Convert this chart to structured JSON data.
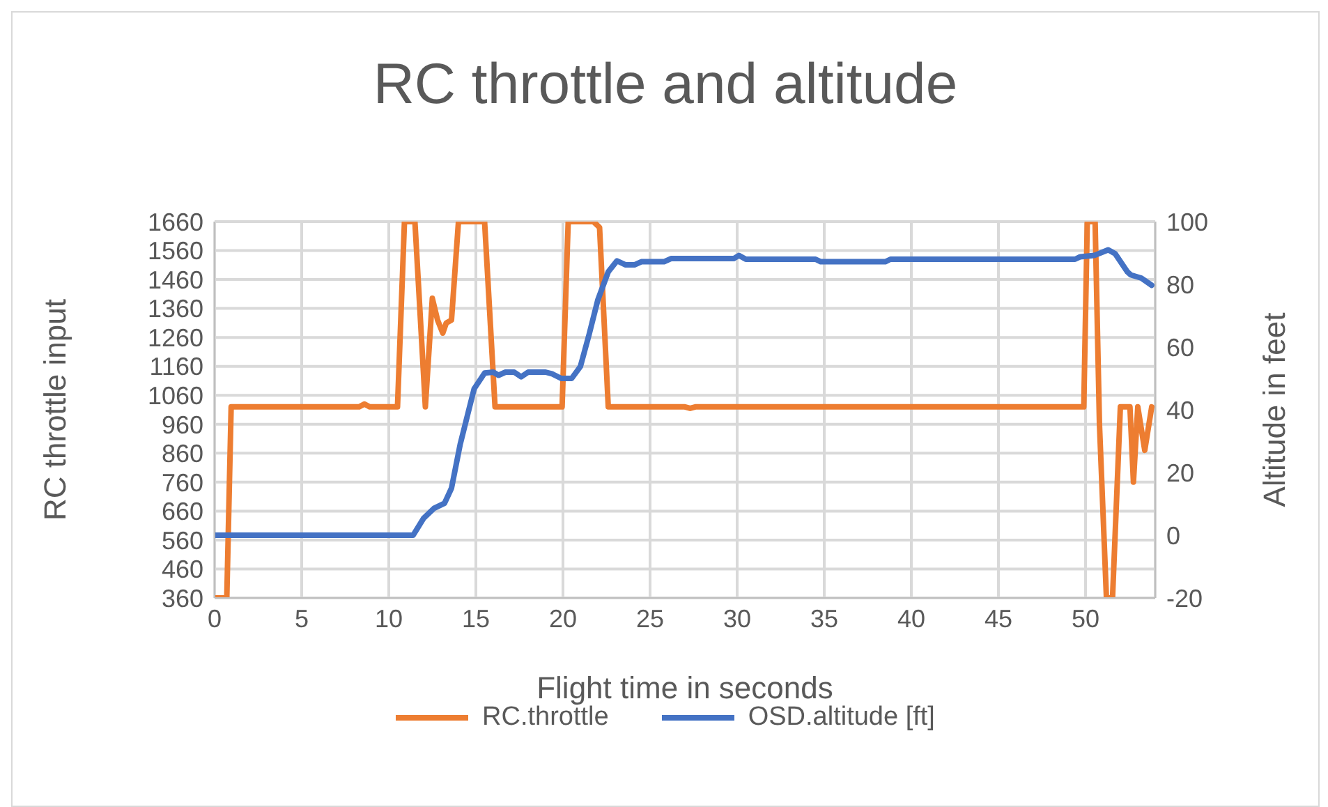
{
  "chart_data": {
    "type": "line",
    "title": "RC throttle and altitude",
    "xlabel": "Flight time in seconds",
    "ylabel": "RC throttle input",
    "y2label": "Altitude in feet",
    "xlim": [
      0,
      54
    ],
    "xticks": [
      0,
      5,
      10,
      15,
      20,
      25,
      30,
      35,
      40,
      45,
      50
    ],
    "ylim": [
      360,
      1660
    ],
    "yticks": [
      360,
      460,
      560,
      660,
      760,
      860,
      960,
      1060,
      1160,
      1260,
      1360,
      1460,
      1560,
      1660
    ],
    "y2lim": [
      -20,
      100
    ],
    "y2ticks": [
      -20,
      0,
      20,
      40,
      60,
      80,
      100
    ],
    "grid": true,
    "legend": "bottom",
    "marker": "none",
    "line_style": "solid",
    "series": [
      {
        "name": "RC.throttle",
        "color": "#ed7d31",
        "x": [
          0,
          0.7,
          0.95,
          8.3,
          8.6,
          8.9,
          10.5,
          10.9,
          11.5,
          12.1,
          12.5,
          12.8,
          13.1,
          13.3,
          13.6,
          14.0,
          15.5,
          16.1,
          19.95,
          20.3,
          21.75,
          22.1,
          22.6,
          27.0,
          27.3,
          27.6,
          49.9,
          50.1,
          50.55,
          50.8,
          51.2,
          51.55,
          52.0,
          52.55,
          52.75,
          53.0,
          53.4,
          53.8
        ],
        "values": [
          360,
          360,
          1020,
          1020,
          1030,
          1020,
          1020,
          1660,
          1660,
          1020,
          1395,
          1320,
          1275,
          1310,
          1320,
          1660,
          1660,
          1020,
          1020,
          1660,
          1660,
          1640,
          1020,
          1020,
          1015,
          1020,
          1020,
          1660,
          1660,
          960,
          360,
          360,
          1020,
          1020,
          760,
          1020,
          870,
          1020
        ]
      },
      {
        "name": "OSD.altitude [ft]",
        "color": "#4472c4",
        "axis": "y2",
        "x": [
          0,
          11.4,
          12.0,
          12.6,
          13.2,
          13.6,
          14.1,
          14.9,
          15.5,
          16.0,
          16.3,
          16.7,
          17.2,
          17.6,
          18.0,
          19.0,
          19.4,
          19.9,
          20.5,
          21.0,
          21.5,
          22.0,
          22.6,
          23.1,
          23.6,
          24.1,
          24.5,
          25.8,
          26.2,
          29.8,
          30.1,
          30.5,
          34.5,
          34.8,
          38.5,
          38.8,
          49.4,
          49.7,
          50.5,
          51.3,
          51.7,
          52.4,
          52.6,
          53.2,
          53.8
        ],
        "values": [
          0,
          0,
          5.4,
          8.6,
          10.2,
          15,
          29,
          46.7,
          51.7,
          52,
          51,
          52,
          52,
          50.5,
          52,
          52,
          51.4,
          50,
          50,
          53.8,
          64,
          75,
          84,
          87.5,
          86.2,
          86.2,
          87.2,
          87.2,
          88.2,
          88.2,
          89.2,
          88,
          88,
          87.2,
          87.2,
          88,
          88,
          88.8,
          89.2,
          91,
          89.8,
          84,
          83,
          82,
          79.7
        ]
      }
    ]
  }
}
